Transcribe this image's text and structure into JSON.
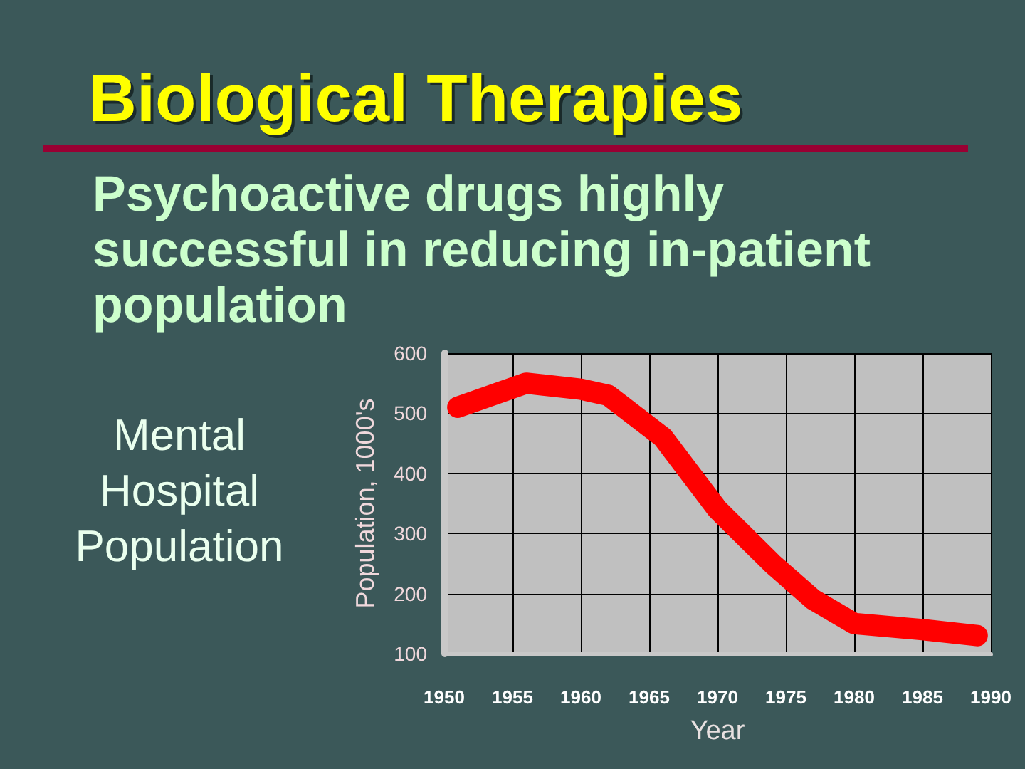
{
  "chart_data": {
    "type": "line",
    "title": "Biological Therapies",
    "subtitle": "Psychoactive drugs highly successful in reducing in-patient population",
    "xlabel": "Year",
    "ylabel": "Population, 1000's",
    "annotations": [
      "Mental Hospital Population"
    ],
    "x": [
      1951,
      1956,
      1960,
      1962,
      1966,
      1970,
      1974,
      1977,
      1980,
      1985,
      1989
    ],
    "values": [
      510,
      550,
      540,
      530,
      460,
      340,
      250,
      190,
      150,
      140,
      130
    ],
    "color": "#ff0000",
    "xlim": [
      1950,
      1990
    ],
    "xticks": [
      1950,
      1955,
      1960,
      1965,
      1970,
      1975,
      1980,
      1985,
      1990
    ],
    "ylim": [
      100,
      600
    ],
    "yticks": [
      100,
      200,
      300,
      400,
      500,
      600
    ],
    "grid": true,
    "marker": "none",
    "line_style": "solid"
  }
}
